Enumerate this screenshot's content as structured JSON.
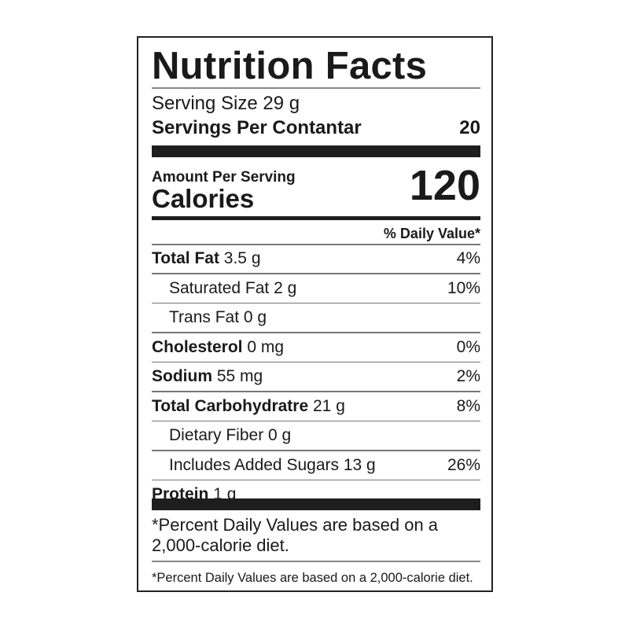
{
  "title": "Nutrition Facts",
  "serving_size": "Serving Size 29 g",
  "servings_per_container_label": "Servings Per Contantar",
  "servings_per_container_value": "20",
  "amount_per_serving": "Amount Per Serving",
  "calories_label": "Calories",
  "calories_value": "120",
  "daily_value_header": "% Daily Value*",
  "nutrients": [
    {
      "name": "Total Fat",
      "amount": "3.5 g",
      "dv": "4%"
    },
    {
      "name": "Saturated Fat 2 g",
      "amount": "",
      "dv": "10%"
    },
    {
      "name": "Trans Fat 0 g",
      "amount": "",
      "dv": ""
    },
    {
      "name": "Cholesterol",
      "amount": "0 mg",
      "dv": "0%"
    },
    {
      "name": "Sodium",
      "amount": "55 mg",
      "dv": "2%"
    },
    {
      "name": "Total Carbohydratre",
      "amount": "21 g",
      "dv": "8%"
    },
    {
      "name": "Dietary Fiber 0 g",
      "amount": "",
      "dv": ""
    },
    {
      "name": "Includes Added Sugars 13 g",
      "amount": "",
      "dv": "26%"
    },
    {
      "name": "Protein",
      "amount": "1 g",
      "dv": ""
    }
  ],
  "footnote_large": "*Percent Daily Values are based on a 2,000-calorie diet.",
  "footnote_small": "*Percent Daily Values are based on a 2,000-calorie diet."
}
